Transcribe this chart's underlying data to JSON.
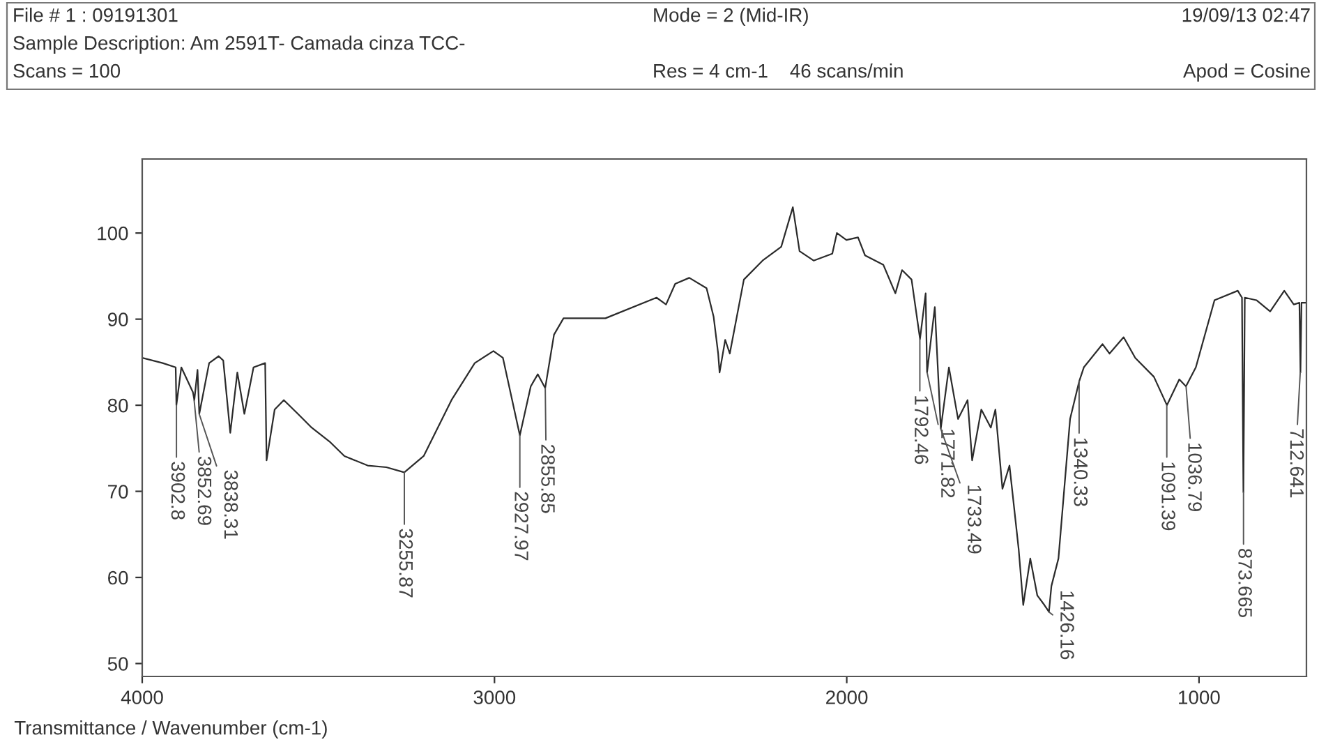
{
  "chart_data": {
    "type": "line",
    "xlabel": "Transmittance / Wavenumber (cm-1)",
    "xlim": [
      4000,
      695
    ],
    "xticks": [
      4000,
      3000,
      2000,
      1000
    ],
    "ylim": [
      48.5,
      108.6
    ],
    "yticks": [
      50,
      60,
      70,
      80,
      90,
      100
    ],
    "grid": false,
    "legend": false,
    "marker": "none",
    "line_style": "solid",
    "series": [
      {
        "color": "#2b2b2b",
        "x": [
          4000,
          3942,
          3905,
          3903,
          3889,
          3856,
          3852,
          3843,
          3838,
          3810,
          3783,
          3770,
          3750,
          3730,
          3710,
          3684,
          3651,
          3647,
          3624,
          3598,
          3558,
          3519,
          3466,
          3426,
          3360,
          3307,
          3256,
          3201,
          3122,
          3056,
          3003,
          2976,
          2928,
          2897,
          2877,
          2856,
          2831,
          2804,
          2685,
          2540,
          2513,
          2487,
          2447,
          2398,
          2378,
          2365,
          2361,
          2345,
          2332,
          2292,
          2239,
          2186,
          2153,
          2134,
          2094,
          2041,
          2028,
          2001,
          1968,
          1948,
          1896,
          1862,
          1843,
          1816,
          1792,
          1776,
          1772,
          1750,
          1733,
          1710,
          1684,
          1657,
          1644,
          1618,
          1591,
          1578,
          1558,
          1538,
          1512,
          1499,
          1479,
          1459,
          1439,
          1426,
          1419,
          1399,
          1366,
          1340,
          1327,
          1274,
          1254,
          1214,
          1181,
          1128,
          1091,
          1056,
          1037,
          1009,
          956,
          890,
          878,
          874,
          870,
          837,
          798,
          758,
          731,
          715,
          712,
          709,
          695
        ],
        "values": [
          85.5,
          84.9,
          84.4,
          80,
          84.4,
          81.5,
          80.6,
          84.1,
          79,
          84.9,
          85.7,
          85.2,
          76.8,
          83.8,
          79,
          84.4,
          84.9,
          73.6,
          79.5,
          80.6,
          79,
          77.4,
          75.7,
          74.1,
          73,
          72.8,
          72.2,
          74.1,
          80.6,
          84.9,
          86.3,
          85.5,
          76.5,
          82.2,
          83.6,
          82,
          88.2,
          90.1,
          90.1,
          92.5,
          91.7,
          94.1,
          94.8,
          93.6,
          90.3,
          86,
          83.8,
          87.6,
          86,
          94.6,
          96.8,
          98.4,
          103,
          97.9,
          96.8,
          97.6,
          100,
          99.2,
          99.5,
          97.4,
          96.3,
          93,
          95.7,
          94.6,
          87.7,
          93,
          83.8,
          91.4,
          77.3,
          84.4,
          78.4,
          80.6,
          73.6,
          79.5,
          77.4,
          79.5,
          70.3,
          73,
          63.3,
          56.8,
          62.2,
          57.9,
          56.8,
          56,
          59,
          62.2,
          78.4,
          82.8,
          84.4,
          87.1,
          86,
          87.9,
          85.5,
          83.3,
          80,
          83,
          82.2,
          84.4,
          92.2,
          93.3,
          92.5,
          69.9,
          92.5,
          92.2,
          90.9,
          93.3,
          91.7,
          91.9,
          83.8,
          91.9,
          91.9
        ]
      }
    ],
    "annotations": [
      "File # 1 : 09191301",
      "Mode = 2 (Mid-IR)",
      "19/09/13 02:47",
      "Sample Description: Am 2591T- Camada cinza TCC-",
      "Scans = 100",
      "Res = 4 cm-1    46 scans/min",
      "Apod = Cosine",
      {
        "text": "3902.8",
        "x": 3902.8,
        "y": 80
      },
      {
        "text": "3852.69",
        "x": 3852.69,
        "y": 80.6
      },
      {
        "text": "3838.31",
        "x": 3838.31,
        "y": 79
      },
      {
        "text": "3255.87",
        "x": 3255.87,
        "y": 72.2
      },
      {
        "text": "2927.97",
        "x": 2927.97,
        "y": 76.5
      },
      {
        "text": "2855.85",
        "x": 2855.85,
        "y": 82
      },
      {
        "text": "1792.46",
        "x": 1792.46,
        "y": 87.7
      },
      {
        "text": "1771.82",
        "x": 1771.82,
        "y": 83.8
      },
      {
        "text": "1733.49",
        "x": 1733.49,
        "y": 77.3
      },
      {
        "text": "1426.16",
        "x": 1426.16,
        "y": 56
      },
      {
        "text": "1340.33",
        "x": 1340.33,
        "y": 82.8
      },
      {
        "text": "1091.39",
        "x": 1091.39,
        "y": 80
      },
      {
        "text": "1036.79",
        "x": 1036.79,
        "y": 82.2
      },
      {
        "text": "873.665",
        "x": 873.665,
        "y": 69.9
      },
      {
        "text": "712.641",
        "x": 712.641,
        "y": 83.8
      }
    ]
  }
}
